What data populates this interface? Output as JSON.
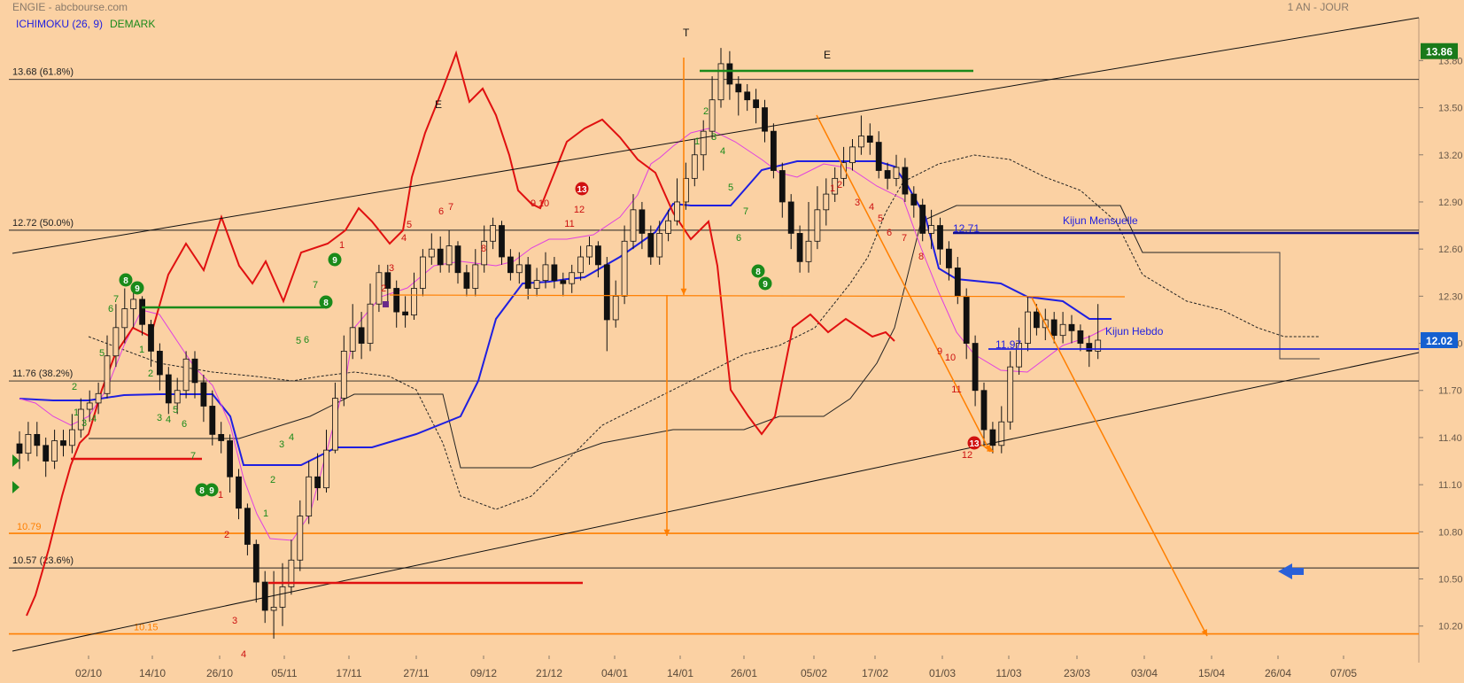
{
  "header": {
    "title": "ENGIE - abcbourse.com",
    "period": "1 AN - JOUR",
    "indicator_ichimoku": "ICHIMOKU (26, 9)",
    "indicator_demark": "DEMARK"
  },
  "colors": {
    "background": "#fbd1a3",
    "kijun": "#1f1fe0",
    "tenkan": "#e040e0",
    "chikou": "#e01010",
    "demark_buy": "#1a8a1a",
    "demark_sell": "#cc1010",
    "fib": "#ff7f00",
    "price_badge_top": "#1a7a1a",
    "price_badge_last": "#1560d0"
  },
  "chart_data": {
    "type": "candlestick",
    "ylim": [
      10.08,
      13.96
    ],
    "yticks": [
      "13.80",
      "13.50",
      "13.20",
      "12.90",
      "12.60",
      "12.30",
      "12.00",
      "11.70",
      "11.40",
      "11.10",
      "10.80",
      "10.50",
      "10.20"
    ],
    "x_dates": [
      "02/10",
      "14/10",
      "26/10",
      "05/11",
      "17/11",
      "27/11",
      "09/12",
      "21/12",
      "04/01",
      "14/01",
      "26/01",
      "05/02",
      "17/02",
      "01/03",
      "11/03",
      "23/03",
      "03/04",
      "15/04",
      "26/04",
      "07/05"
    ],
    "fib_levels": [
      {
        "value": 13.68,
        "label": "13.68  (61.8%)"
      },
      {
        "value": 12.72,
        "label": "12.72  (50.0%)"
      },
      {
        "value": 11.76,
        "label": "11.76  (38.2%)"
      },
      {
        "value": 10.57,
        "label": "10.57  (23.6%)"
      }
    ],
    "target_levels": [
      {
        "value": 10.79,
        "label": "10.79"
      },
      {
        "value": 10.15,
        "label": "10.15"
      }
    ],
    "price_badges": [
      {
        "value": 13.86,
        "label": "13.86"
      },
      {
        "value": 12.02,
        "label": "12.02"
      }
    ],
    "annotations": [
      {
        "text": "Kijun Mensuelle"
      },
      {
        "text": "Kijun Hebdo"
      },
      {
        "text": "12.71"
      },
      {
        "text": "11.97"
      },
      {
        "text": "T"
      },
      {
        "text": "E"
      },
      {
        "text": "E"
      }
    ],
    "candles": [
      [
        11.36,
        11.3,
        11.44,
        11.2
      ],
      [
        11.3,
        11.42,
        11.5,
        11.25
      ],
      [
        11.42,
        11.35,
        11.5,
        11.28
      ],
      [
        11.35,
        11.25,
        11.4,
        11.15
      ],
      [
        11.25,
        11.38,
        11.45,
        11.2
      ],
      [
        11.38,
        11.35,
        11.45,
        11.28
      ],
      [
        11.35,
        11.45,
        11.55,
        11.3
      ],
      [
        11.45,
        11.58,
        11.65,
        11.4
      ],
      [
        11.58,
        11.62,
        11.7,
        11.5
      ],
      [
        11.62,
        11.68,
        11.75,
        11.55
      ],
      [
        11.68,
        11.92,
        12.05,
        11.65
      ],
      [
        11.92,
        12.1,
        12.25,
        11.85
      ],
      [
        12.1,
        12.22,
        12.35,
        12.0
      ],
      [
        12.22,
        12.28,
        12.36,
        12.1
      ],
      [
        12.28,
        12.12,
        12.3,
        12.05
      ],
      [
        12.12,
        11.95,
        12.15,
        11.85
      ],
      [
        11.95,
        11.8,
        12.0,
        11.7
      ],
      [
        11.8,
        11.62,
        11.85,
        11.55
      ],
      [
        11.62,
        11.7,
        11.78,
        11.55
      ],
      [
        11.7,
        11.9,
        11.95,
        11.65
      ],
      [
        11.9,
        11.75,
        11.95,
        11.65
      ],
      [
        11.75,
        11.6,
        11.8,
        11.5
      ],
      [
        11.6,
        11.42,
        11.7,
        11.35
      ],
      [
        11.42,
        11.38,
        11.5,
        11.3
      ],
      [
        11.38,
        11.15,
        11.42,
        11.05
      ],
      [
        11.15,
        10.95,
        11.2,
        10.88
      ],
      [
        10.95,
        10.72,
        10.98,
        10.65
      ],
      [
        10.72,
        10.48,
        10.75,
        10.35
      ],
      [
        10.48,
        10.3,
        10.55,
        10.22
      ],
      [
        10.3,
        10.32,
        10.55,
        10.12
      ],
      [
        10.32,
        10.45,
        10.6,
        10.2
      ],
      [
        10.45,
        10.62,
        10.75,
        10.4
      ],
      [
        10.62,
        10.9,
        11.0,
        10.55
      ],
      [
        10.9,
        11.15,
        11.25,
        10.85
      ],
      [
        11.15,
        11.08,
        11.3,
        11.0
      ],
      [
        11.08,
        11.32,
        11.45,
        11.05
      ],
      [
        11.32,
        11.65,
        11.75,
        11.3
      ],
      [
        11.65,
        11.95,
        12.05,
        11.6
      ],
      [
        11.95,
        12.1,
        12.25,
        11.9
      ],
      [
        12.1,
        12.0,
        12.2,
        11.9
      ],
      [
        12.0,
        12.25,
        12.38,
        11.95
      ],
      [
        12.25,
        12.45,
        12.5,
        12.2
      ],
      [
        12.45,
        12.35,
        12.5,
        12.25
      ],
      [
        12.35,
        12.2,
        12.4,
        12.1
      ],
      [
        12.2,
        12.18,
        12.3,
        12.1
      ],
      [
        12.18,
        12.35,
        12.45,
        12.15
      ],
      [
        12.35,
        12.55,
        12.6,
        12.3
      ],
      [
        12.55,
        12.6,
        12.7,
        12.5
      ],
      [
        12.6,
        12.5,
        12.68,
        12.45
      ],
      [
        12.5,
        12.62,
        12.72,
        12.45
      ],
      [
        12.62,
        12.45,
        12.65,
        12.38
      ],
      [
        12.45,
        12.35,
        12.5,
        12.3
      ],
      [
        12.35,
        12.5,
        12.6,
        12.3
      ],
      [
        12.5,
        12.65,
        12.75,
        12.45
      ],
      [
        12.65,
        12.75,
        12.8,
        12.6
      ],
      [
        12.75,
        12.55,
        12.78,
        12.5
      ],
      [
        12.55,
        12.45,
        12.6,
        12.4
      ],
      [
        12.45,
        12.5,
        12.58,
        12.38
      ],
      [
        12.5,
        12.35,
        12.55,
        12.28
      ],
      [
        12.35,
        12.4,
        12.48,
        12.3
      ],
      [
        12.4,
        12.5,
        12.58,
        12.35
      ],
      [
        12.5,
        12.4,
        12.55,
        12.35
      ],
      [
        12.4,
        12.38,
        12.45,
        12.3
      ],
      [
        12.38,
        12.45,
        12.5,
        12.32
      ],
      [
        12.45,
        12.55,
        12.62,
        12.4
      ],
      [
        12.55,
        12.62,
        12.68,
        12.5
      ],
      [
        12.62,
        12.5,
        12.65,
        12.42
      ],
      [
        12.5,
        12.15,
        12.55,
        11.95
      ],
      [
        12.15,
        12.3,
        12.4,
        12.1
      ],
      [
        12.3,
        12.65,
        12.75,
        12.25
      ],
      [
        12.65,
        12.85,
        12.95,
        12.6
      ],
      [
        12.85,
        12.7,
        12.9,
        12.6
      ],
      [
        12.7,
        12.55,
        12.75,
        12.5
      ],
      [
        12.55,
        12.7,
        12.78,
        12.5
      ],
      [
        12.7,
        12.78,
        12.85,
        12.65
      ],
      [
        12.78,
        12.9,
        13.05,
        12.75
      ],
      [
        12.9,
        13.05,
        13.15,
        12.85
      ],
      [
        13.05,
        13.2,
        13.3,
        13.0
      ],
      [
        13.2,
        13.35,
        13.42,
        13.1
      ],
      [
        13.35,
        13.55,
        13.7,
        13.3
      ],
      [
        13.55,
        13.78,
        13.88,
        13.5
      ],
      [
        13.78,
        13.65,
        13.86,
        13.55
      ],
      [
        13.65,
        13.6,
        13.7,
        13.45
      ],
      [
        13.6,
        13.55,
        13.65,
        13.48
      ],
      [
        13.55,
        13.5,
        13.62,
        13.4
      ],
      [
        13.5,
        13.35,
        13.55,
        13.28
      ],
      [
        13.35,
        13.1,
        13.4,
        13.05
      ],
      [
        13.1,
        12.9,
        13.15,
        12.8
      ],
      [
        12.9,
        12.7,
        12.95,
        12.6
      ],
      [
        12.7,
        12.52,
        12.75,
        12.45
      ],
      [
        12.52,
        12.65,
        12.9,
        12.45
      ],
      [
        12.65,
        12.85,
        13.0,
        12.6
      ],
      [
        12.85,
        12.95,
        13.05,
        12.75
      ],
      [
        12.95,
        13.05,
        13.12,
        12.9
      ],
      [
        13.05,
        13.15,
        13.25,
        13.0
      ],
      [
        13.15,
        13.25,
        13.3,
        13.1
      ],
      [
        13.25,
        13.32,
        13.45,
        13.2
      ],
      [
        13.32,
        13.28,
        13.4,
        13.2
      ],
      [
        13.28,
        13.1,
        13.35,
        13.05
      ],
      [
        13.1,
        13.05,
        13.15,
        12.98
      ],
      [
        13.05,
        13.12,
        13.2,
        13.0
      ],
      [
        13.12,
        12.95,
        13.18,
        12.9
      ],
      [
        12.95,
        12.88,
        13.0,
        12.8
      ],
      [
        12.88,
        12.7,
        12.92,
        12.65
      ],
      [
        12.7,
        12.75,
        12.85,
        12.6
      ],
      [
        12.75,
        12.6,
        12.8,
        12.5
      ],
      [
        12.6,
        12.48,
        12.65,
        12.4
      ],
      [
        12.48,
        12.3,
        12.55,
        12.25
      ],
      [
        12.3,
        12.0,
        12.35,
        11.9
      ],
      [
        12.0,
        11.7,
        12.05,
        11.6
      ],
      [
        11.7,
        11.45,
        11.75,
        11.35
      ],
      [
        11.45,
        11.35,
        11.5,
        11.3
      ],
      [
        11.35,
        11.5,
        11.6,
        11.3
      ],
      [
        11.5,
        11.85,
        11.95,
        11.45
      ],
      [
        11.85,
        12.0,
        12.1,
        11.8
      ],
      [
        12.0,
        12.2,
        12.3,
        11.95
      ],
      [
        12.2,
        12.1,
        12.25,
        12.05
      ],
      [
        12.1,
        12.15,
        12.22,
        12.02
      ],
      [
        12.15,
        12.05,
        12.2,
        12.0
      ],
      [
        12.05,
        12.12,
        12.2,
        12.0
      ],
      [
        12.12,
        12.08,
        12.18,
        12.0
      ],
      [
        12.08,
        12.0,
        12.12,
        11.95
      ],
      [
        12.0,
        11.95,
        12.05,
        11.85
      ],
      [
        11.95,
        12.02,
        12.25,
        11.9
      ]
    ]
  }
}
